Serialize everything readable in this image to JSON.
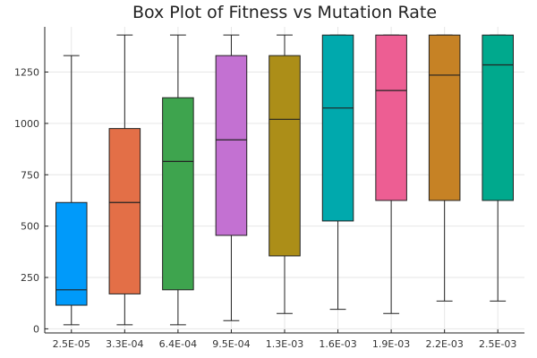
{
  "chart_data": {
    "type": "box",
    "title": "Box Plot of Fitness vs Mutation Rate",
    "xlabel": "",
    "ylabel": "",
    "ylim": [
      -20,
      1470
    ],
    "yticks": [
      0,
      250,
      500,
      750,
      1000,
      1250
    ],
    "grid": true,
    "legend": "none",
    "categories": [
      "2.5E-05",
      "3.3E-04",
      "6.4E-04",
      "9.5E-04",
      "1.3E-03",
      "1.6E-03",
      "1.9E-03",
      "2.2E-03",
      "2.5E-03"
    ],
    "boxes": [
      {
        "category": "2.5E-05",
        "min": 20,
        "q1": 115,
        "median": 190,
        "q3": 615,
        "max": 1330,
        "color": "#009AFA"
      },
      {
        "category": "3.3E-04",
        "min": 20,
        "q1": 170,
        "median": 615,
        "q3": 975,
        "max": 1430,
        "color": "#E36F47"
      },
      {
        "category": "6.4E-04",
        "min": 20,
        "q1": 190,
        "median": 815,
        "q3": 1125,
        "max": 1430,
        "color": "#3EA44E"
      },
      {
        "category": "9.5E-04",
        "min": 40,
        "q1": 455,
        "median": 920,
        "q3": 1330,
        "max": 1430,
        "color": "#C371D2"
      },
      {
        "category": "1.3E-03",
        "min": 75,
        "q1": 355,
        "median": 1020,
        "q3": 1330,
        "max": 1430,
        "color": "#AC8E18"
      },
      {
        "category": "1.6E-03",
        "min": 95,
        "q1": 525,
        "median": 1075,
        "q3": 1430,
        "max": 1430,
        "color": "#00A9AD"
      },
      {
        "category": "1.9E-03",
        "min": 75,
        "q1": 625,
        "median": 1160,
        "q3": 1430,
        "max": 1430,
        "color": "#ED5E93"
      },
      {
        "category": "2.2E-03",
        "min": 135,
        "q1": 625,
        "median": 1235,
        "q3": 1430,
        "max": 1430,
        "color": "#C68225"
      },
      {
        "category": "2.5E-03",
        "min": 135,
        "q1": 625,
        "median": 1285,
        "q3": 1430,
        "max": 1430,
        "color": "#00A98D"
      }
    ]
  }
}
